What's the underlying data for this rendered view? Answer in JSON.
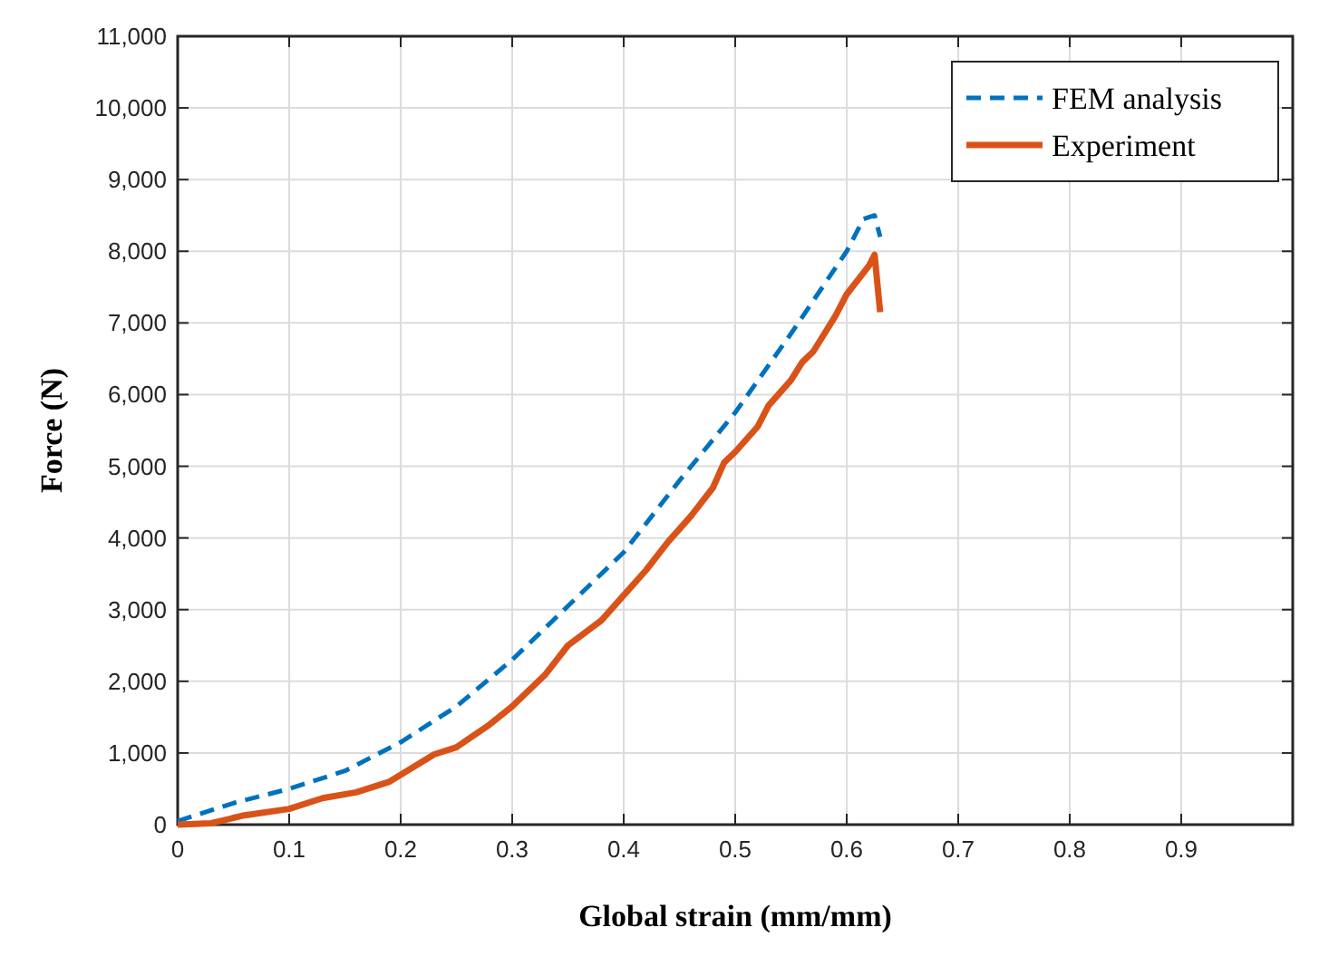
{
  "chart_data": {
    "type": "line",
    "xlabel": "Global strain (mm/mm)",
    "ylabel": "Force (N)",
    "xlim": [
      0,
      1
    ],
    "xticks": [
      0,
      0.1,
      0.2,
      0.3,
      0.4,
      0.5,
      0.6,
      0.7,
      0.8,
      0.9
    ],
    "ylim": [
      0,
      11000
    ],
    "yticks": [
      {
        "value": 0,
        "label": "0"
      },
      {
        "value": 1000,
        "label": "1,000"
      },
      {
        "value": 2000,
        "label": "2,000"
      },
      {
        "value": 3000,
        "label": "3,000"
      },
      {
        "value": 4000,
        "label": "4,000"
      },
      {
        "value": 5000,
        "label": "5,000"
      },
      {
        "value": 6000,
        "label": "6,000"
      },
      {
        "value": 7000,
        "label": "7,000"
      },
      {
        "value": 8000,
        "label": "8,000"
      },
      {
        "value": 9000,
        "label": "9,000"
      },
      {
        "value": 10000,
        "label": "10,000"
      },
      {
        "value": 11000,
        "label": "11,000"
      }
    ],
    "grid": true,
    "legend": "top right",
    "series": [
      {
        "name": "FEM analysis",
        "color": "#0072bd",
        "line_style": "dashed",
        "x": [
          0,
          0.05,
          0.1,
          0.15,
          0.2,
          0.25,
          0.3,
          0.35,
          0.4,
          0.45,
          0.5,
          0.55,
          0.6,
          0.615,
          0.625,
          0.63
        ],
        "values": [
          50,
          300,
          500,
          750,
          1150,
          1650,
          2300,
          3050,
          3800,
          4800,
          5750,
          6850,
          8000,
          8450,
          8500,
          8200
        ]
      },
      {
        "name": "Experiment",
        "color": "#d95319",
        "line_style": "solid",
        "x": [
          0,
          0.03,
          0.06,
          0.1,
          0.13,
          0.16,
          0.19,
          0.23,
          0.25,
          0.28,
          0.3,
          0.33,
          0.35,
          0.38,
          0.4,
          0.42,
          0.44,
          0.46,
          0.48,
          0.49,
          0.5,
          0.52,
          0.53,
          0.55,
          0.56,
          0.57,
          0.59,
          0.6,
          0.62,
          0.625,
          0.63
        ],
        "values": [
          0,
          20,
          130,
          220,
          370,
          450,
          600,
          980,
          1080,
          1400,
          1650,
          2100,
          2500,
          2850,
          3200,
          3550,
          3950,
          4300,
          4700,
          5050,
          5200,
          5550,
          5850,
          6200,
          6450,
          6600,
          7100,
          7400,
          7800,
          7950,
          7150
        ]
      }
    ]
  }
}
